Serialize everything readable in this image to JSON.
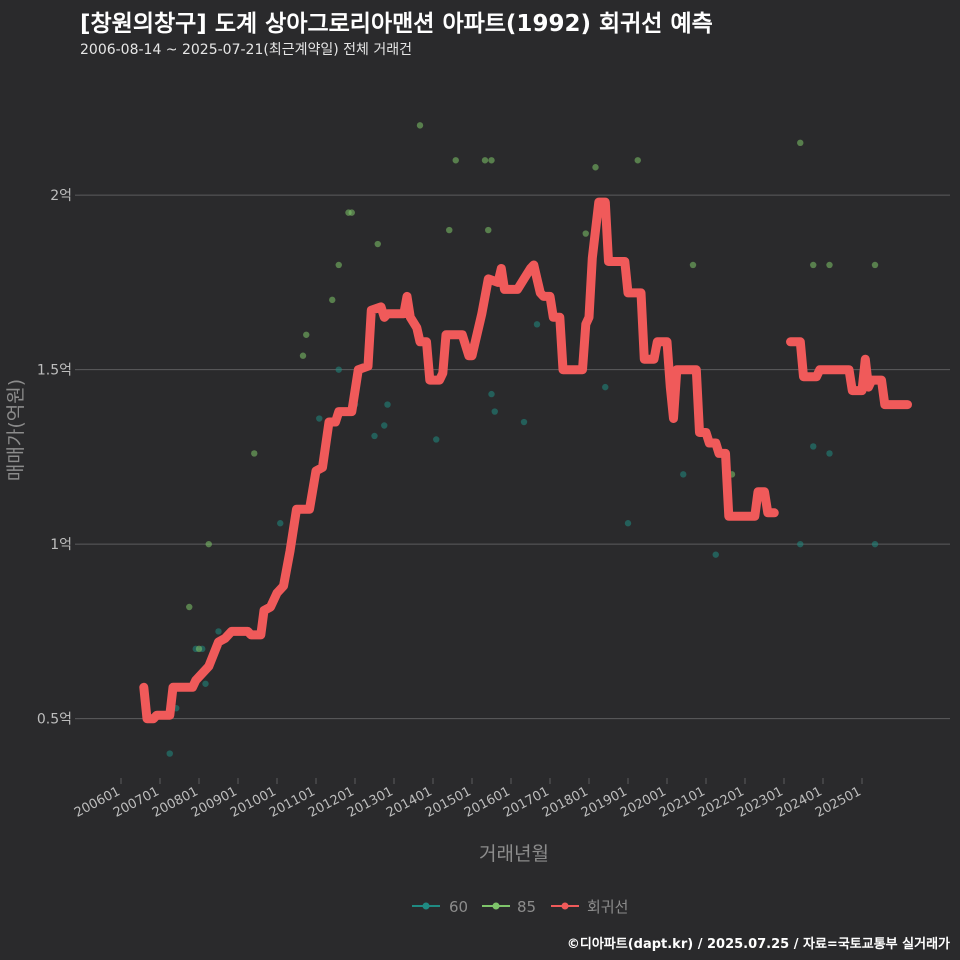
{
  "title": "[창원의창구] 도계 상아그로리아맨션 아파트(1992) 회귀선 예측",
  "subtitle": "2006-08-14 ~ 2025-07-21(최근계약일) 전체 거래건",
  "credit": "©디아파트(dapt.kr) / 2025.07.25 / 자료=국토교통부 실거래가",
  "colors": {
    "background": "#2a2a2c",
    "grid": "#5c5c5e",
    "s60": "#1f8a82",
    "s85": "#7ec46a",
    "regression": "#f05a5a",
    "axis_text": "#bdbdbd",
    "axis_title": "#8c8c8c"
  },
  "chart_data": {
    "type": "scatter",
    "xlabel": "거래년월",
    "ylabel": "매매가(억원)",
    "ylim": [
      0.33,
      2.33
    ],
    "y_ticks": [
      0.5,
      1.0,
      1.5,
      2.0
    ],
    "y_tick_labels": [
      "0.5억",
      "1억",
      "1.5억",
      "2억"
    ],
    "x_ticks": [
      "200601",
      "200701",
      "200801",
      "200901",
      "201001",
      "201101",
      "201201",
      "201301",
      "201401",
      "201501",
      "201601",
      "201701",
      "201801",
      "201901",
      "202001",
      "202101",
      "202201",
      "202301",
      "202401",
      "202501"
    ],
    "grid": "horizontal",
    "legend": {
      "placement": "bottom",
      "entries": [
        "60",
        "85",
        "회귀선"
      ]
    },
    "series": [
      {
        "name": "60",
        "points": [
          [
            "2007-04",
            0.4
          ],
          [
            "2007-06",
            0.53
          ],
          [
            "2007-12",
            0.7
          ],
          [
            "2008-02",
            0.7
          ],
          [
            "2008-03",
            0.6
          ],
          [
            "2008-07",
            0.75
          ],
          [
            "2010-02",
            1.06
          ],
          [
            "2011-02",
            1.36
          ],
          [
            "2011-08",
            1.5
          ],
          [
            "2012-01",
            1.4
          ],
          [
            "2012-07",
            1.31
          ],
          [
            "2012-10",
            1.34
          ],
          [
            "2012-11",
            1.4
          ],
          [
            "2014-01",
            1.47
          ],
          [
            "2014-02",
            1.3
          ],
          [
            "2014-05",
            1.57
          ],
          [
            "2015-07",
            1.43
          ],
          [
            "2015-08",
            1.38
          ],
          [
            "2016-05",
            1.35
          ],
          [
            "2016-09",
            1.63
          ],
          [
            "2018-06",
            1.45
          ],
          [
            "2019-01",
            1.06
          ],
          [
            "2020-06",
            1.2
          ],
          [
            "2021-04",
            0.97
          ],
          [
            "2023-06",
            1.0
          ],
          [
            "2023-10",
            1.28
          ],
          [
            "2024-03",
            1.26
          ],
          [
            "2025-05",
            1.0
          ]
        ]
      },
      {
        "name": "85",
        "points": [
          [
            "2007-10",
            0.82
          ],
          [
            "2008-01",
            0.7
          ],
          [
            "2008-04",
            1.0
          ],
          [
            "2009-06",
            1.26
          ],
          [
            "2010-09",
            1.54
          ],
          [
            "2010-10",
            1.6
          ],
          [
            "2011-06",
            1.7
          ],
          [
            "2011-08",
            1.8
          ],
          [
            "2011-11",
            1.95
          ],
          [
            "2011-12",
            1.95
          ],
          [
            "2012-08",
            1.86
          ],
          [
            "2013-09",
            2.2
          ],
          [
            "2014-06",
            1.9
          ],
          [
            "2014-08",
            2.1
          ],
          [
            "2015-05",
            2.1
          ],
          [
            "2015-06",
            1.9
          ],
          [
            "2015-07",
            2.1
          ],
          [
            "2017-12",
            1.89
          ],
          [
            "2018-03",
            2.08
          ],
          [
            "2019-04",
            2.1
          ],
          [
            "2020-09",
            1.8
          ],
          [
            "2021-09",
            1.2
          ],
          [
            "2023-06",
            2.15
          ],
          [
            "2023-10",
            1.8
          ],
          [
            "2024-03",
            1.8
          ],
          [
            "2025-05",
            1.8
          ]
        ]
      }
    ],
    "regression": [
      [
        [
          "2006-08",
          0.59
        ],
        [
          "2006-09",
          0.5
        ],
        [
          "2006-11",
          0.5
        ],
        [
          "2006-12",
          0.51
        ],
        [
          "2007-04",
          0.51
        ],
        [
          "2007-05",
          0.59
        ],
        [
          "2007-11",
          0.59
        ],
        [
          "2007-12",
          0.61
        ],
        [
          "2008-02",
          0.63
        ],
        [
          "2008-04",
          0.65
        ],
        [
          "2008-07",
          0.72
        ],
        [
          "2008-09",
          0.73
        ],
        [
          "2008-11",
          0.75
        ],
        [
          "2009-04",
          0.75
        ],
        [
          "2009-05",
          0.74
        ],
        [
          "2009-08",
          0.74
        ],
        [
          "2009-09",
          0.81
        ],
        [
          "2009-11",
          0.82
        ],
        [
          "2010-01",
          0.86
        ],
        [
          "2010-03",
          0.88
        ],
        [
          "2010-05",
          0.98
        ],
        [
          "2010-07",
          1.1
        ],
        [
          "2010-11",
          1.1
        ],
        [
          "2011-01",
          1.21
        ],
        [
          "2011-03",
          1.22
        ],
        [
          "2011-05",
          1.35
        ],
        [
          "2011-07",
          1.35
        ],
        [
          "2011-08",
          1.38
        ],
        [
          "2011-12",
          1.38
        ],
        [
          "2012-02",
          1.5
        ],
        [
          "2012-05",
          1.51
        ],
        [
          "2012-06",
          1.67
        ],
        [
          "2012-09",
          1.68
        ],
        [
          "2012-10",
          1.65
        ],
        [
          "2012-11",
          1.66
        ],
        [
          "2013-04",
          1.66
        ],
        [
          "2013-05",
          1.71
        ],
        [
          "2013-06",
          1.65
        ],
        [
          "2013-08",
          1.62
        ],
        [
          "2013-09",
          1.58
        ],
        [
          "2013-11",
          1.58
        ],
        [
          "2013-12",
          1.47
        ],
        [
          "2014-03",
          1.47
        ],
        [
          "2014-04",
          1.49
        ],
        [
          "2014-05",
          1.6
        ],
        [
          "2014-10",
          1.6
        ],
        [
          "2014-12",
          1.54
        ],
        [
          "2015-01",
          1.54
        ],
        [
          "2015-04",
          1.66
        ],
        [
          "2015-06",
          1.76
        ],
        [
          "2015-09",
          1.75
        ],
        [
          "2015-10",
          1.79
        ],
        [
          "2015-11",
          1.73
        ],
        [
          "2016-03",
          1.73
        ],
        [
          "2016-05",
          1.76
        ],
        [
          "2016-07",
          1.79
        ],
        [
          "2016-08",
          1.8
        ],
        [
          "2016-09",
          1.76
        ],
        [
          "2016-10",
          1.72
        ],
        [
          "2016-11",
          1.71
        ],
        [
          "2017-01",
          1.71
        ],
        [
          "2017-02",
          1.65
        ],
        [
          "2017-04",
          1.65
        ],
        [
          "2017-05",
          1.5
        ],
        [
          "2017-11",
          1.5
        ],
        [
          "2017-12",
          1.63
        ],
        [
          "2018-01",
          1.65
        ],
        [
          "2018-02",
          1.82
        ],
        [
          "2018-04",
          1.98
        ],
        [
          "2018-06",
          1.98
        ],
        [
          "2018-07",
          1.81
        ],
        [
          "2018-12",
          1.81
        ],
        [
          "2019-01",
          1.72
        ],
        [
          "2019-05",
          1.72
        ],
        [
          "2019-06",
          1.53
        ],
        [
          "2019-09",
          1.53
        ],
        [
          "2019-10",
          1.58
        ],
        [
          "2020-01",
          1.58
        ],
        [
          "2020-02",
          1.45
        ],
        [
          "2020-03",
          1.36
        ],
        [
          "2020-04",
          1.5
        ],
        [
          "2020-10",
          1.5
        ],
        [
          "2020-11",
          1.32
        ],
        [
          "2021-01",
          1.32
        ],
        [
          "2021-02",
          1.29
        ],
        [
          "2021-04",
          1.29
        ],
        [
          "2021-05",
          1.26
        ],
        [
          "2021-07",
          1.26
        ],
        [
          "2021-08",
          1.08
        ],
        [
          "2022-04",
          1.08
        ],
        [
          "2022-05",
          1.15
        ],
        [
          "2022-07",
          1.15
        ],
        [
          "2022-08",
          1.09
        ],
        [
          "2022-10",
          1.09
        ]
      ],
      [
        [
          "2023-03",
          1.58
        ],
        [
          "2023-06",
          1.58
        ],
        [
          "2023-07",
          1.48
        ],
        [
          "2023-11",
          1.48
        ],
        [
          "2023-12",
          1.5
        ],
        [
          "2024-09",
          1.5
        ],
        [
          "2024-10",
          1.44
        ],
        [
          "2025-01",
          1.44
        ],
        [
          "2025-02",
          1.53
        ],
        [
          "2025-03",
          1.45
        ],
        [
          "2025-04",
          1.47
        ],
        [
          "2025-07",
          1.47
        ],
        [
          "2025-08",
          1.4
        ],
        [
          "2026-03",
          1.4
        ]
      ]
    ]
  }
}
